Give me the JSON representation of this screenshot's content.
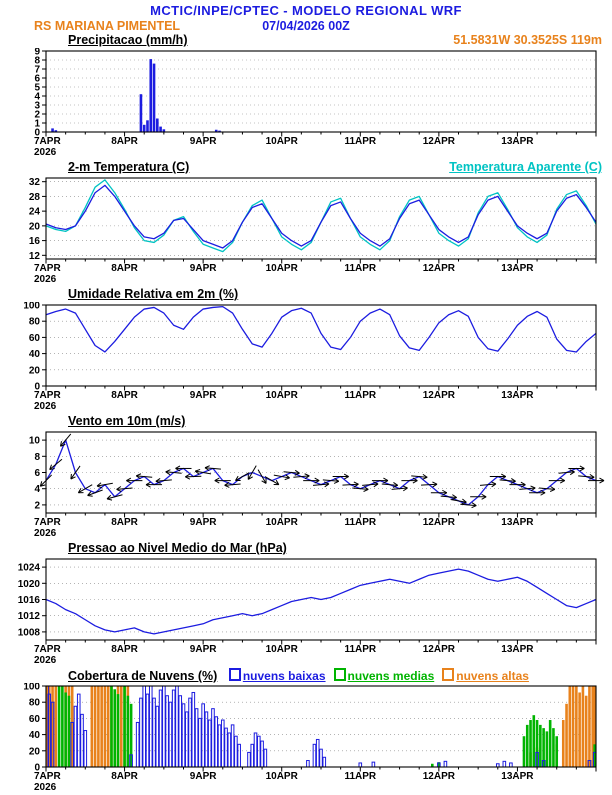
{
  "header": {
    "title": "MCTIC/INPE/CPTEC - MODELO REGIONAL WRF",
    "station": "RS MARIANA PIMENTEL",
    "datetime": "07/04/2026 00Z",
    "location": "51.5831W 30.3525S 119m"
  },
  "colors": {
    "blue": "#1c1ce0",
    "cyan": "#00c3c3",
    "green": "#00b400",
    "orange": "#e8821c",
    "black": "#000000",
    "grid": "#888888"
  },
  "x_axis": {
    "tick_labels": [
      "7APR",
      "8APR",
      "9APR",
      "10APR",
      "11APR",
      "12APR",
      "13APR"
    ],
    "year_label": "2026",
    "hours_start": 0,
    "hours_end": 168,
    "minor_tick_hours": 6
  },
  "chart_data": [
    {
      "id": "precipitation",
      "type": "bar",
      "title": "Precipitacao (mm/h)",
      "ylim": [
        0,
        9
      ],
      "yticks": [
        0,
        1,
        2,
        3,
        4,
        5,
        6,
        7,
        8,
        9
      ],
      "series": [
        {
          "name": "precipitacao",
          "color": "blue",
          "fill": true,
          "bars": [
            [
              2,
              0.4
            ],
            [
              3,
              0.2
            ],
            [
              29,
              4.2
            ],
            [
              30,
              0.8
            ],
            [
              31,
              1.3
            ],
            [
              32,
              8.1
            ],
            [
              33,
              7.6
            ],
            [
              34,
              1.5
            ],
            [
              35,
              0.6
            ],
            [
              36,
              0.3
            ],
            [
              52,
              0.25
            ],
            [
              53,
              0.15
            ]
          ]
        }
      ]
    },
    {
      "id": "temperature",
      "type": "line",
      "title": "2-m Temperatura (C)",
      "right_label": {
        "text": "Temperatura Aparente (C)",
        "color": "cyan"
      },
      "ylim": [
        11,
        33
      ],
      "yticks": [
        12,
        16,
        20,
        24,
        28,
        32
      ],
      "x_step_hours": 3,
      "series": [
        {
          "name": "Temperatura Aparente (C)",
          "color": "cyan",
          "values": [
            20.0,
            19.0,
            18.5,
            20.0,
            25.0,
            30.5,
            32.5,
            29.0,
            24.5,
            19.5,
            16.0,
            15.5,
            17.5,
            21.5,
            22.5,
            18.5,
            15.0,
            14.0,
            13.0,
            15.5,
            21.0,
            25.5,
            27.0,
            22.0,
            17.0,
            15.0,
            13.5,
            15.5,
            21.0,
            26.5,
            27.5,
            22.0,
            17.0,
            15.0,
            13.5,
            16.0,
            22.5,
            27.0,
            28.0,
            23.0,
            18.0,
            16.0,
            14.5,
            16.5,
            23.5,
            28.0,
            29.0,
            24.5,
            19.5,
            17.0,
            15.5,
            17.5,
            24.5,
            28.5,
            29.5,
            25.5,
            20.5
          ]
        },
        {
          "name": "2-m Temperatura (C)",
          "color": "blue",
          "values": [
            20.5,
            19.5,
            19.0,
            20.0,
            24.0,
            29.0,
            31.0,
            28.0,
            24.0,
            20.0,
            17.0,
            16.5,
            18.0,
            21.5,
            22.0,
            19.0,
            16.0,
            15.0,
            14.0,
            16.0,
            21.0,
            25.0,
            26.0,
            22.0,
            18.0,
            16.0,
            14.5,
            16.0,
            21.0,
            25.5,
            26.5,
            22.0,
            18.0,
            16.0,
            14.5,
            16.5,
            22.0,
            26.0,
            27.0,
            23.0,
            19.0,
            17.0,
            15.5,
            17.0,
            23.0,
            27.0,
            28.0,
            24.0,
            20.0,
            18.0,
            16.5,
            18.0,
            24.0,
            27.5,
            28.5,
            25.0,
            21.0
          ]
        }
      ]
    },
    {
      "id": "relative-humidity",
      "type": "line",
      "title": "Umidade Relativa em 2m (%)",
      "ylim": [
        0,
        100
      ],
      "yticks": [
        0,
        20,
        40,
        60,
        80,
        100
      ],
      "x_step_hours": 3,
      "series": [
        {
          "name": "umidade relativa",
          "color": "blue",
          "values": [
            88,
            92,
            95,
            90,
            70,
            50,
            42,
            55,
            70,
            85,
            95,
            97,
            90,
            75,
            70,
            85,
            95,
            97,
            98,
            90,
            70,
            52,
            48,
            65,
            85,
            93,
            96,
            90,
            65,
            48,
            45,
            60,
            80,
            90,
            95,
            88,
            62,
            47,
            44,
            60,
            78,
            88,
            93,
            86,
            60,
            46,
            43,
            58,
            75,
            86,
            92,
            85,
            58,
            44,
            42,
            55,
            65
          ]
        }
      ]
    },
    {
      "id": "wind-10m",
      "type": "line+barbs",
      "title": "Vento em 10m (m/s)",
      "ylim": [
        1,
        11
      ],
      "yticks": [
        2,
        4,
        6,
        8,
        10
      ],
      "x_step_hours": 3,
      "series": [
        {
          "name": "velocidade do vento",
          "color": "blue",
          "values": [
            5,
            7,
            10,
            6,
            4,
            3.5,
            4.5,
            3,
            4,
            5,
            5.5,
            4.5,
            5,
            6,
            6.5,
            5.5,
            6,
            6.5,
            5,
            4.5,
            5.5,
            6,
            5.5,
            5,
            5.5,
            6,
            5.5,
            5,
            4.5,
            5,
            5.5,
            4.5,
            4,
            4.5,
            5,
            4.5,
            4,
            5,
            5.5,
            4.5,
            3.5,
            3,
            2.5,
            2,
            3,
            4.5,
            5.5,
            5,
            4.5,
            4,
            3.5,
            4,
            5,
            6,
            6.5,
            5.5,
            5
          ]
        }
      ],
      "barb_dirs_deg": [
        135,
        140,
        130,
        125,
        150,
        160,
        170,
        165,
        175,
        180,
        185,
        180,
        175,
        185,
        180,
        178,
        190,
        185,
        180,
        175,
        150,
        120,
        60,
        30,
        10,
        5,
        -5,
        0,
        -5,
        5,
        0,
        -3,
        5,
        -5,
        0,
        5,
        -5,
        0,
        5,
        -3,
        0,
        5,
        10,
        5,
        0,
        -5,
        0,
        5,
        0,
        -5,
        0,
        5,
        0,
        -5,
        0,
        5,
        0
      ]
    },
    {
      "id": "mslp",
      "type": "line",
      "title": "Pressao ao Nivel Medio do Mar (hPa)",
      "ylim": [
        1006,
        1026
      ],
      "yticks": [
        1008,
        1012,
        1016,
        1020,
        1024
      ],
      "x_step_hours": 3,
      "series": [
        {
          "name": "pressao",
          "color": "blue",
          "values": [
            1016,
            1015,
            1013.5,
            1012.5,
            1011,
            1009.5,
            1008.5,
            1008,
            1008.5,
            1009,
            1008,
            1007.5,
            1008,
            1008.5,
            1009,
            1009.5,
            1010,
            1011,
            1011.5,
            1012,
            1012.5,
            1012,
            1012.5,
            1013.5,
            1014.5,
            1015.5,
            1016,
            1016.5,
            1016,
            1016.5,
            1017.5,
            1018.5,
            1019.5,
            1020,
            1020.5,
            1021,
            1020.5,
            1020,
            1021,
            1022,
            1022.5,
            1023,
            1023.5,
            1023,
            1022,
            1021,
            1020.5,
            1021,
            1021.5,
            1020.5,
            1019,
            1017.5,
            1016,
            1014.5,
            1014,
            1015,
            1016
          ]
        }
      ]
    },
    {
      "id": "cloud-cover",
      "type": "bar",
      "title": "Cobertura de Nuvens (%)",
      "ylim": [
        0,
        100
      ],
      "yticks": [
        0,
        20,
        40,
        60,
        80,
        100
      ],
      "legend": [
        {
          "label": "nuvens baixas",
          "color": "blue"
        },
        {
          "label": "nuvens medias",
          "color": "green"
        },
        {
          "label": "nuvens altas",
          "color": "orange"
        }
      ],
      "series": [
        {
          "name": "nuvens altas",
          "color": "orange",
          "fill": true,
          "bars": [
            [
              0,
              100
            ],
            [
              1,
              100
            ],
            [
              2,
              100
            ],
            [
              3,
              100
            ],
            [
              6,
              100
            ],
            [
              7,
              100
            ],
            [
              8,
              100
            ],
            [
              14,
              100
            ],
            [
              15,
              100
            ],
            [
              16,
              100
            ],
            [
              17,
              100
            ],
            [
              18,
              100
            ],
            [
              19,
              100
            ],
            [
              20,
              100
            ],
            [
              22,
              100
            ],
            [
              23,
              100
            ],
            [
              24,
              100
            ],
            [
              25,
              100
            ],
            [
              148,
              18
            ],
            [
              150,
              24
            ],
            [
              156,
              28
            ],
            [
              158,
              58
            ],
            [
              159,
              78
            ],
            [
              160,
              100
            ],
            [
              161,
              100
            ],
            [
              162,
              100
            ],
            [
              163,
              92
            ],
            [
              164,
              100
            ],
            [
              165,
              88
            ],
            [
              166,
              100
            ],
            [
              167,
              100
            ],
            [
              168,
              100
            ]
          ]
        },
        {
          "name": "nuvens medias",
          "color": "green",
          "fill": true,
          "bars": [
            [
              4,
              100
            ],
            [
              5,
              100
            ],
            [
              6,
              92
            ],
            [
              7,
              88
            ],
            [
              20,
              100
            ],
            [
              21,
              96
            ],
            [
              22,
              90
            ],
            [
              24,
              100
            ],
            [
              25,
              88
            ],
            [
              26,
              78
            ],
            [
              118,
              4
            ],
            [
              120,
              6
            ],
            [
              146,
              38
            ],
            [
              147,
              52
            ],
            [
              148,
              58
            ],
            [
              149,
              64
            ],
            [
              150,
              58
            ],
            [
              151,
              52
            ],
            [
              152,
              48
            ],
            [
              153,
              44
            ],
            [
              154,
              58
            ],
            [
              155,
              48
            ],
            [
              156,
              38
            ],
            [
              168,
              28
            ]
          ]
        },
        {
          "name": "nuvens baixas",
          "color": "blue",
          "fill": false,
          "bars": [
            [
              0,
              100
            ],
            [
              1,
              90
            ],
            [
              2,
              80
            ],
            [
              8,
              55
            ],
            [
              9,
              75
            ],
            [
              10,
              90
            ],
            [
              11,
              65
            ],
            [
              12,
              45
            ],
            [
              26,
              15
            ],
            [
              28,
              55
            ],
            [
              29,
              85
            ],
            [
              30,
              100
            ],
            [
              31,
              90
            ],
            [
              32,
              100
            ],
            [
              33,
              85
            ],
            [
              34,
              75
            ],
            [
              35,
              95
            ],
            [
              36,
              100
            ],
            [
              37,
              88
            ],
            [
              38,
              80
            ],
            [
              39,
              95
            ],
            [
              40,
              100
            ],
            [
              41,
              88
            ],
            [
              42,
              78
            ],
            [
              43,
              68
            ],
            [
              44,
              85
            ],
            [
              45,
              92
            ],
            [
              46,
              72
            ],
            [
              47,
              60
            ],
            [
              48,
              78
            ],
            [
              49,
              68
            ],
            [
              50,
              58
            ],
            [
              51,
              72
            ],
            [
              52,
              62
            ],
            [
              53,
              52
            ],
            [
              54,
              58
            ],
            [
              55,
              48
            ],
            [
              56,
              42
            ],
            [
              57,
              52
            ],
            [
              58,
              38
            ],
            [
              59,
              28
            ],
            [
              62,
              18
            ],
            [
              63,
              28
            ],
            [
              64,
              42
            ],
            [
              65,
              38
            ],
            [
              66,
              32
            ],
            [
              67,
              22
            ],
            [
              80,
              8
            ],
            [
              82,
              28
            ],
            [
              83,
              34
            ],
            [
              84,
              22
            ],
            [
              85,
              12
            ],
            [
              96,
              5
            ],
            [
              100,
              6
            ],
            [
              120,
              5
            ],
            [
              122,
              7
            ],
            [
              138,
              4
            ],
            [
              140,
              7
            ],
            [
              142,
              5
            ],
            [
              150,
              18
            ],
            [
              152,
              8
            ],
            [
              166,
              8
            ],
            [
              168,
              18
            ]
          ]
        }
      ]
    }
  ]
}
